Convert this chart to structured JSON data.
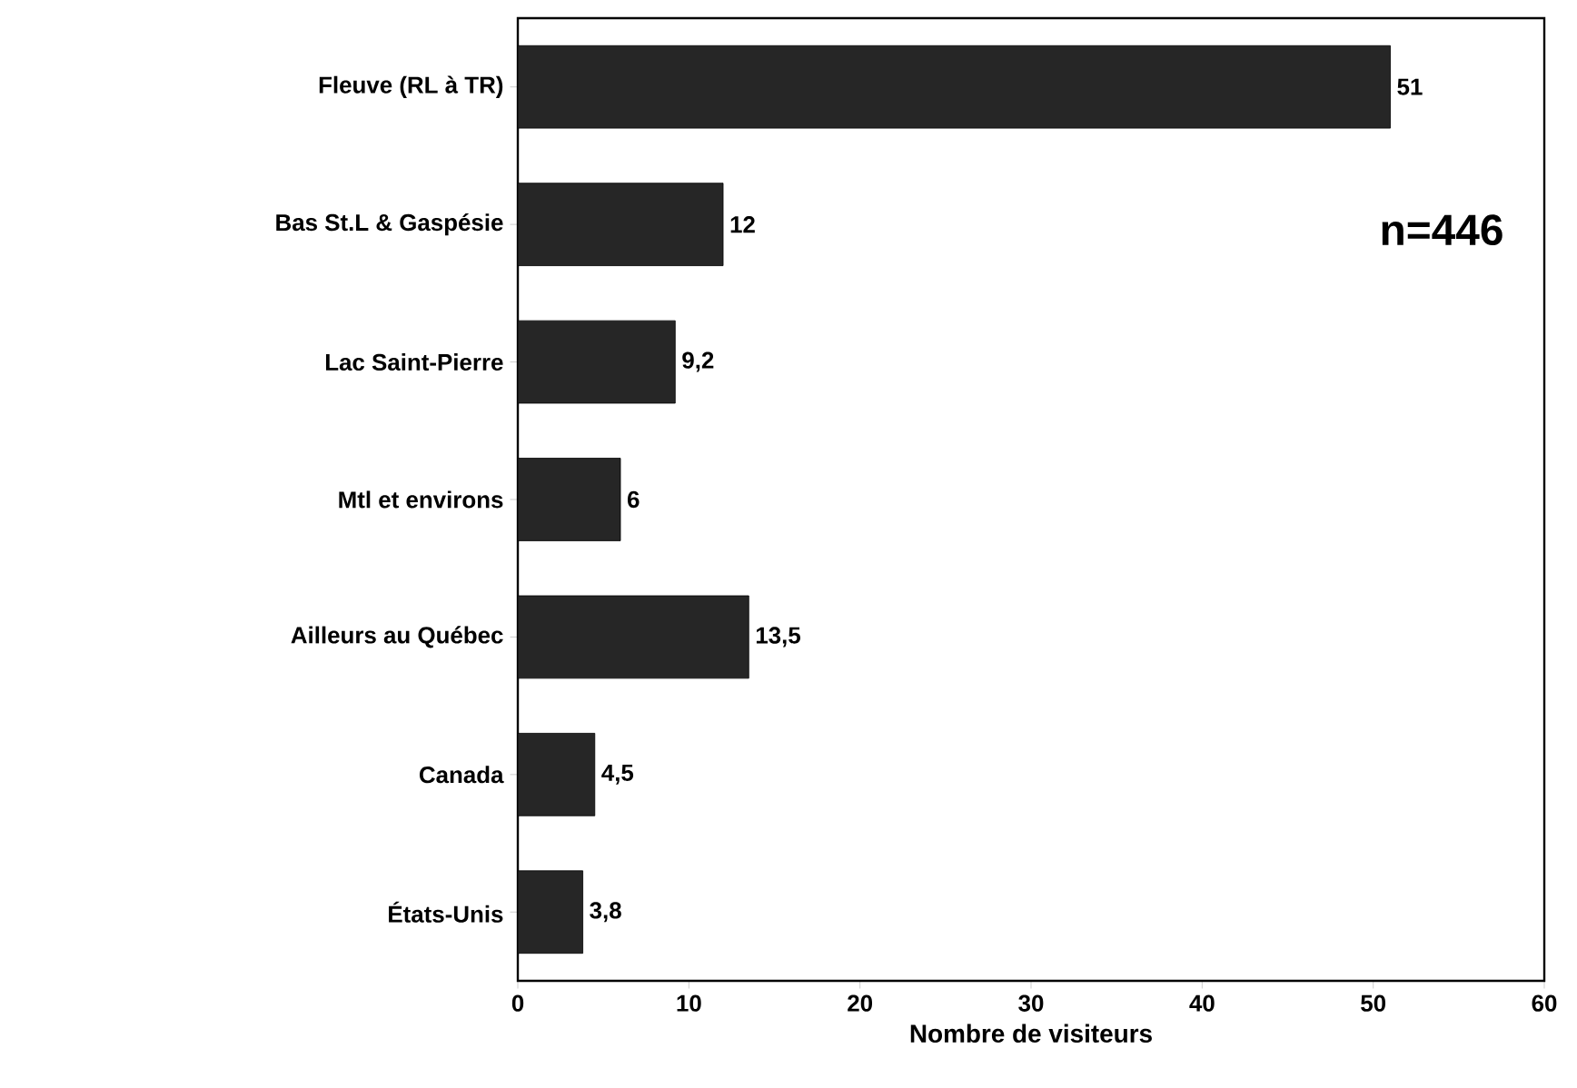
{
  "chart_data": {
    "type": "bar",
    "orientation": "horizontal",
    "xlabel": "Nombre de visiteurs",
    "categories": [
      "Fleuve (RL à TR)",
      "Bas St.L & Gaspésie",
      "Lac Saint-Pierre",
      "Mtl et environs",
      "Ailleurs au Québec",
      "Canada",
      "États-Unis"
    ],
    "values": [
      51,
      12,
      9.2,
      6,
      13.5,
      4.5,
      3.8
    ],
    "value_labels": [
      "51",
      "12",
      "9,2",
      "6",
      "13,5",
      "4,5",
      "3,8"
    ],
    "color": "#262626",
    "xlim": [
      0,
      60
    ],
    "xticks": [
      0,
      10,
      20,
      30,
      40,
      50,
      60
    ],
    "annotations": [
      "n=446"
    ]
  }
}
